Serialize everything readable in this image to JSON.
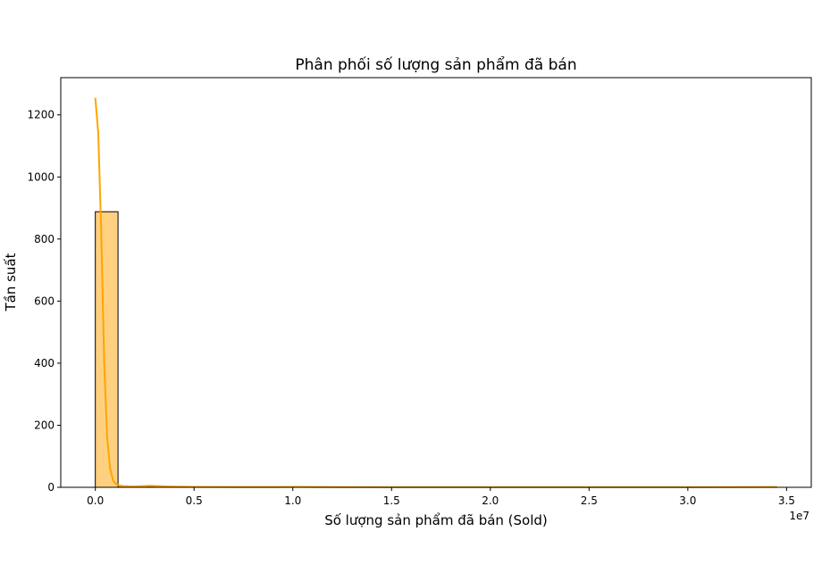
{
  "chart_data": {
    "type": "bar",
    "title": "Phân phối số lượng sản phẩm đã bán",
    "xlabel": "Số lượng sản phẩm đã bán (Sold)",
    "ylabel": "Tần suất",
    "x_offset_label": "1e7",
    "xlim": [
      -1750000,
      36250000
    ],
    "ylim": [
      0,
      1320
    ],
    "x_ticks": [
      0,
      5000000,
      10000000,
      15000000,
      20000000,
      25000000,
      30000000,
      35000000
    ],
    "x_tick_labels": [
      "0.0",
      "0.5",
      "1.0",
      "1.5",
      "2.0",
      "2.5",
      "3.0",
      "3.5"
    ],
    "y_ticks": [
      0,
      200,
      400,
      600,
      800,
      1000,
      1200
    ],
    "y_tick_labels": [
      "0",
      "200",
      "400",
      "600",
      "800",
      "1000",
      "1200"
    ],
    "bin_width": 1150000,
    "bins": [
      {
        "x0": 0,
        "x1": 1150000,
        "count": 888
      },
      {
        "x0": 1150000,
        "x1": 2300000,
        "count": 4
      },
      {
        "x0": 2300000,
        "x1": 3450000,
        "count": 3
      },
      {
        "x0": 3450000,
        "x1": 4600000,
        "count": 1
      },
      {
        "x0": 4600000,
        "x1": 5750000,
        "count": 1
      },
      {
        "x0": 5750000,
        "x1": 6900000,
        "count": 0
      },
      {
        "x0": 6900000,
        "x1": 8050000,
        "count": 0
      },
      {
        "x0": 8050000,
        "x1": 9200000,
        "count": 0
      },
      {
        "x0": 9200000,
        "x1": 10350000,
        "count": 1
      },
      {
        "x0": 10350000,
        "x1": 11500000,
        "count": 0
      },
      {
        "x0": 33350000,
        "x1": 34500000,
        "count": 1
      }
    ],
    "kde": {
      "x": [
        0,
        150000,
        300000,
        450000,
        600000,
        750000,
        900000,
        1050000,
        1200000,
        1400000,
        1700000,
        2000000,
        2400000,
        2800000,
        3200000,
        3600000,
        4200000,
        5000000,
        7000000,
        9500000,
        10200000,
        11000000,
        15000000,
        20000000,
        25000000,
        30000000,
        34500000
      ],
      "y": [
        1255,
        1140,
        820,
        400,
        160,
        60,
        22,
        10,
        6,
        4,
        3,
        3,
        4,
        5,
        4,
        3,
        2,
        1.5,
        1,
        1,
        1.5,
        1,
        0.5,
        0.5,
        0.5,
        0.5,
        1
      ]
    },
    "colors": {
      "bar_fill": "#ffd080",
      "bar_edge": "#000000",
      "kde_line": "#ffa500"
    },
    "grid": false,
    "legend": "none"
  }
}
